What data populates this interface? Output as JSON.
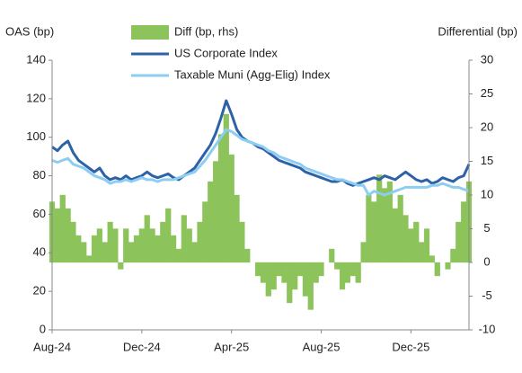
{
  "chart_data": {
    "type": "combo",
    "y_label": "OAS (bp)",
    "y2_label": "Differential (bp)",
    "categories": [
      "Aug-24",
      null,
      null,
      null,
      null,
      null,
      null,
      null,
      null,
      null,
      null,
      null,
      null,
      null,
      null,
      null,
      null,
      "Dec-24",
      null,
      null,
      null,
      null,
      null,
      null,
      null,
      null,
      null,
      null,
      null,
      null,
      null,
      null,
      null,
      null,
      "Apr-25",
      null,
      null,
      null,
      null,
      null,
      null,
      null,
      null,
      null,
      null,
      null,
      null,
      null,
      null,
      null,
      null,
      "Aug-25",
      null,
      null,
      null,
      null,
      null,
      null,
      null,
      null,
      null,
      null,
      null,
      null,
      null,
      null,
      null,
      null,
      "Dec-25",
      null,
      null,
      null,
      null,
      null,
      null,
      null,
      null,
      null,
      null,
      null
    ],
    "ylim": [
      0,
      140
    ],
    "yticks": [
      0,
      20,
      40,
      60,
      80,
      100,
      120,
      140
    ],
    "y2lim": [
      -10,
      30
    ],
    "y2ticks": [
      -10,
      -5,
      0,
      5,
      10,
      15,
      20,
      25,
      30
    ],
    "series": [
      {
        "name": "Diff (bp, rhs)",
        "type": "bar",
        "axis": "y2",
        "color": "#8cc35a",
        "values": [
          9,
          8,
          10,
          8,
          6,
          4,
          3,
          1,
          4,
          5,
          3,
          6,
          5,
          -1,
          5,
          3,
          4,
          5,
          7,
          5,
          4,
          6,
          8,
          4,
          2,
          7,
          5,
          3,
          6,
          9,
          12,
          15,
          19,
          22,
          16,
          10,
          6,
          2,
          0,
          -2,
          -3,
          -5,
          -4,
          -2,
          -3,
          -6,
          -4,
          -2,
          -5,
          -7,
          -3,
          -2,
          0,
          2,
          -1,
          -4,
          -3,
          -2,
          -3,
          3,
          10,
          9,
          13,
          11,
          12,
          8,
          10,
          7,
          5,
          6,
          3,
          5,
          1,
          -2,
          0,
          -1,
          2,
          6,
          9,
          12
        ]
      },
      {
        "name": "US Corporate Index",
        "type": "line",
        "color": "#2e62a6",
        "values": [
          95,
          93,
          96,
          98,
          92,
          88,
          86,
          84,
          82,
          84,
          80,
          78,
          79,
          78,
          80,
          78,
          79,
          80,
          82,
          80,
          79,
          80,
          81,
          79,
          78,
          80,
          82,
          84,
          88,
          92,
          96,
          102,
          110,
          119,
          112,
          104,
          100,
          98,
          97,
          95,
          94,
          92,
          90,
          88,
          87,
          86,
          85,
          84,
          82,
          81,
          80,
          79,
          78,
          77,
          77,
          78,
          76,
          75,
          76,
          77,
          78,
          79,
          78,
          80,
          79,
          78,
          80,
          82,
          80,
          78,
          77,
          78,
          76,
          77,
          79,
          78,
          77,
          79,
          80,
          86
        ]
      },
      {
        "name": "Taxable Muni (Agg-Elig) Index",
        "type": "line",
        "color": "#8dcdf2",
        "values": [
          88,
          87,
          88,
          89,
          86,
          85,
          84,
          82,
          80,
          79,
          78,
          76,
          77,
          77,
          78,
          77,
          78,
          79,
          78,
          78,
          77,
          78,
          78,
          78,
          79,
          80,
          81,
          82,
          85,
          88,
          92,
          96,
          100,
          104,
          103,
          101,
          99,
          98,
          97,
          96,
          95,
          93,
          92,
          90,
          89,
          88,
          87,
          86,
          84,
          83,
          82,
          81,
          80,
          79,
          78,
          78,
          77,
          76,
          75,
          75,
          70,
          72,
          71,
          70,
          71,
          72,
          73,
          74,
          74,
          74,
          74,
          74,
          75,
          75,
          76,
          75,
          74,
          74,
          73,
          72
        ]
      }
    ]
  }
}
